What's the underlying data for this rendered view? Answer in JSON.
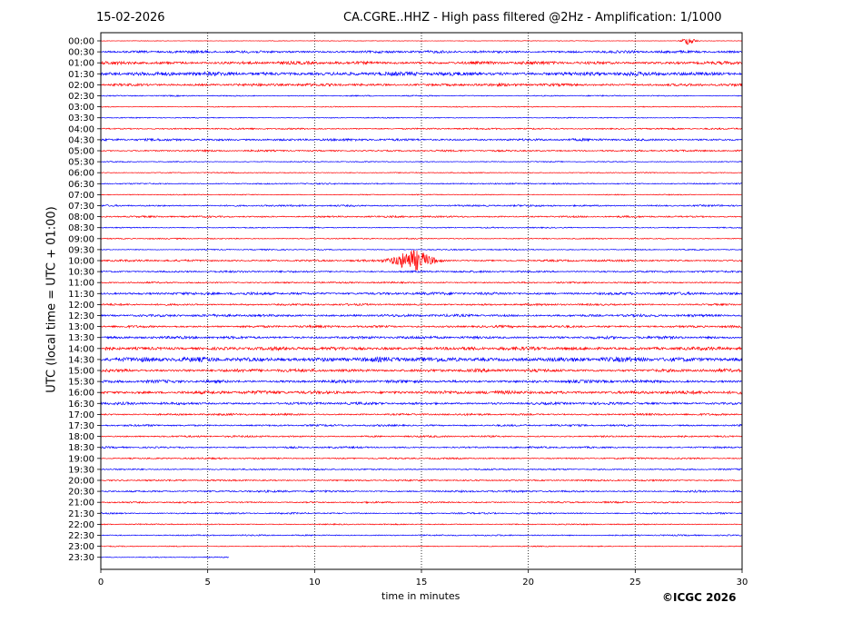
{
  "header": {
    "date": "15-02-2026",
    "title": "CA.CGRE..HHZ - High pass filtered @2Hz - Amplification: 1/1000"
  },
  "footer": {
    "copyright": "©ICGC 2026"
  },
  "chart_data": {
    "type": "line",
    "title": "CA.CGRE..HHZ - High pass filtered @2Hz - Amplification: 1/1000",
    "xlabel": "time in minutes",
    "ylabel": "UTC (local time = UTC + 01:00)",
    "xlim": [
      0,
      30
    ],
    "x_ticks": [
      0,
      5,
      10,
      15,
      20,
      25,
      30
    ],
    "y_tick_labels": [
      "00:00",
      "00:30",
      "01:00",
      "01:30",
      "02:00",
      "02:30",
      "03:00",
      "03:30",
      "04:00",
      "04:30",
      "05:00",
      "05:30",
      "06:00",
      "06:30",
      "07:00",
      "07:30",
      "08:00",
      "08:30",
      "09:00",
      "09:30",
      "10:00",
      "10:30",
      "11:00",
      "11:30",
      "12:00",
      "12:30",
      "13:00",
      "13:30",
      "14:00",
      "14:30",
      "15:00",
      "15:30",
      "16:00",
      "16:30",
      "17:00",
      "17:30",
      "18:00",
      "18:30",
      "19:00",
      "19:30",
      "20:00",
      "20:30",
      "21:00",
      "21:30",
      "22:00",
      "22:30",
      "23:00",
      "23:30"
    ],
    "trace_colors": [
      "#ff0000",
      "#0000ff"
    ],
    "vertical_grid": "dotted",
    "trace_amplitude": [
      0.3,
      1.3,
      1.6,
      2.0,
      1.4,
      0.6,
      0.5,
      0.5,
      0.8,
      1.2,
      0.9,
      0.5,
      0.5,
      0.7,
      0.5,
      0.9,
      0.9,
      0.6,
      0.6,
      0.6,
      1.0,
      1.0,
      0.8,
      1.4,
      1.0,
      1.3,
      1.2,
      1.4,
      1.8,
      2.4,
      1.6,
      1.5,
      1.7,
      1.3,
      1.0,
      1.0,
      0.9,
      0.9,
      0.8,
      0.8,
      0.8,
      1.0,
      0.8,
      0.8,
      0.6,
      0.7,
      0.5,
      0.5
    ],
    "trace_end_minutes": [
      30,
      30,
      30,
      30,
      30,
      30,
      30,
      30,
      30,
      30,
      30,
      30,
      30,
      30,
      30,
      30,
      30,
      30,
      30,
      30,
      30,
      30,
      30,
      30,
      30,
      30,
      30,
      30,
      30,
      30,
      30,
      30,
      30,
      30,
      30,
      30,
      30,
      30,
      30,
      30,
      30,
      30,
      30,
      30,
      30,
      30,
      30,
      6
    ],
    "events": [
      {
        "trace": "00:00",
        "minute": 27.5,
        "label": "burst"
      },
      {
        "trace": "10:00",
        "minute": 14.6,
        "label": "earthquake"
      }
    ]
  }
}
